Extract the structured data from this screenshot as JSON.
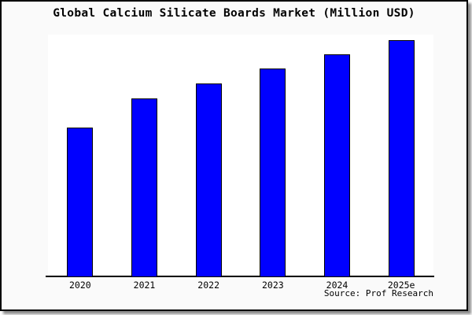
{
  "frame": {
    "background": "#fafafa",
    "plot_background": "#ffffff",
    "border_color": "#000000",
    "text_color": "#000000",
    "shadow_color": "rgba(0,0,0,0.45)"
  },
  "chart_data": {
    "type": "bar",
    "title": "Global Calcium Silicate Boards Market (Million USD)",
    "categories": [
      "2020",
      "2021",
      "2022",
      "2023",
      "2024",
      "2025e"
    ],
    "values": [
      189,
      226,
      245,
      264,
      282,
      300
    ],
    "values_unit": "relative units (y-axis is unlabeled; values proportional to bar heights)",
    "ylim": [
      0,
      307
    ],
    "xlabel": "",
    "ylabel": "",
    "grid": false,
    "legend": false,
    "bar_color": "#0000ff",
    "bar_border_color": "#000000",
    "source": "Source: Prof Research"
  }
}
